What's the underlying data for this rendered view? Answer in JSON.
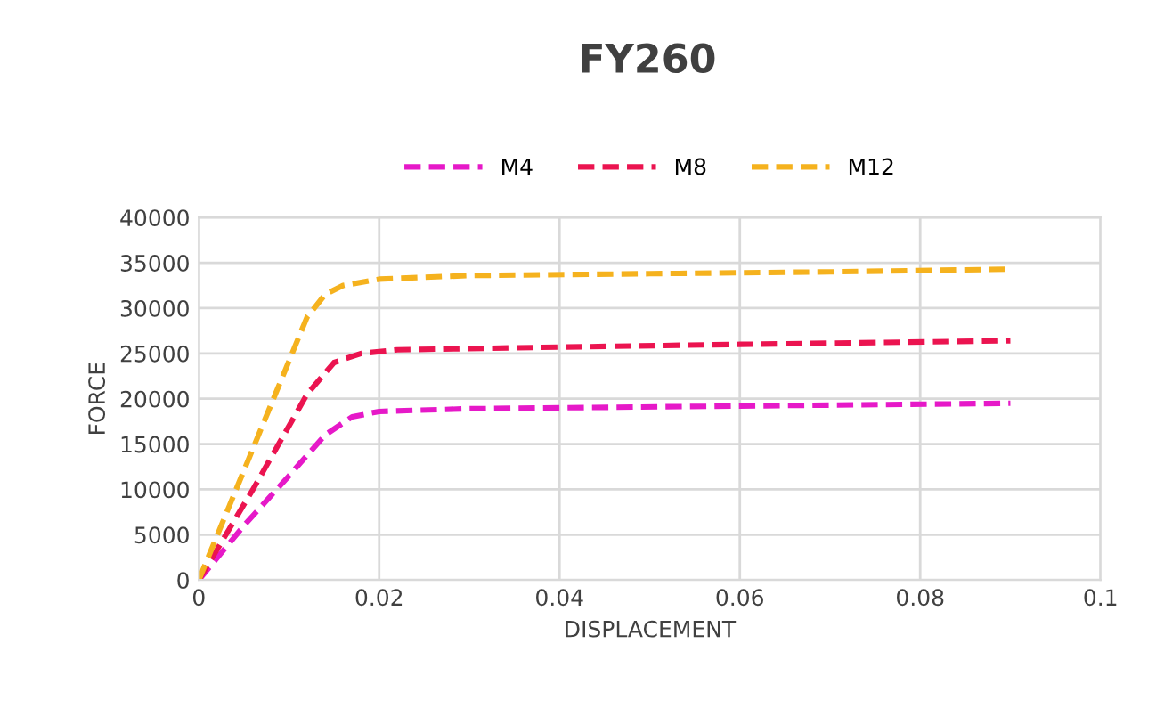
{
  "chart_data": {
    "type": "line",
    "title": "FY260",
    "xlabel": "DISPLACEMENT",
    "ylabel": "FORCE",
    "xlim": [
      0,
      0.1
    ],
    "xticks": [
      {
        "value": 0,
        "label": "0"
      },
      {
        "value": 0.02,
        "label": "0.02"
      },
      {
        "value": 0.04,
        "label": "0.04"
      },
      {
        "value": 0.06,
        "label": "0.06"
      },
      {
        "value": 0.08,
        "label": "0.08"
      },
      {
        "value": 0.1,
        "label": "0.1"
      }
    ],
    "ylim": [
      0,
      40000
    ],
    "yticks": [
      0,
      5000,
      10000,
      15000,
      20000,
      25000,
      30000,
      35000,
      40000
    ],
    "grid": true,
    "legend": "top",
    "marker": "none",
    "line_style": "dashed",
    "series": [
      {
        "name": "M4",
        "color": "#e619c8",
        "x": [
          0,
          0.005,
          0.01,
          0.014,
          0.017,
          0.02,
          0.03,
          0.06,
          0.09
        ],
        "values": [
          0,
          6000,
          11500,
          16000,
          18000,
          18600,
          18900,
          19200,
          19500
        ]
      },
      {
        "name": "M8",
        "color": "#eb1450",
        "x": [
          0,
          0.006,
          0.012,
          0.015,
          0.018,
          0.022,
          0.04,
          0.06,
          0.09
        ],
        "values": [
          0,
          10000,
          20500,
          24000,
          25000,
          25400,
          25700,
          26000,
          26400
        ]
      },
      {
        "name": "M12",
        "color": "#f5b21e",
        "x": [
          0,
          0.006,
          0.012,
          0.014,
          0.016,
          0.02,
          0.03,
          0.05,
          0.07,
          0.09
        ],
        "values": [
          0,
          14500,
          29000,
          31500,
          32500,
          33200,
          33600,
          33800,
          34000,
          34300
        ]
      }
    ]
  }
}
